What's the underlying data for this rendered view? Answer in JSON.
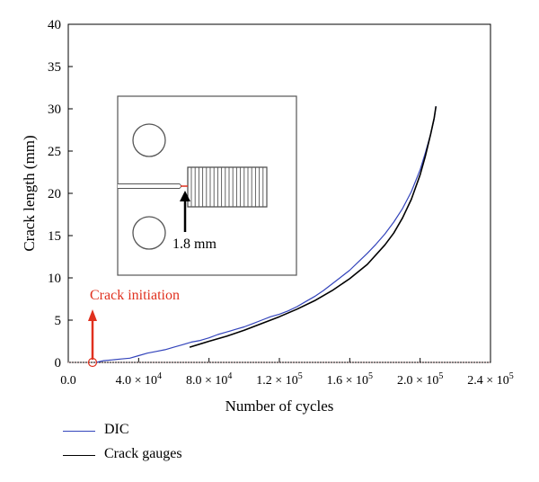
{
  "chart_data": {
    "type": "line",
    "xlabel": "Number of cycles",
    "ylabel": "Crack length (mm)",
    "xlim": [
      0,
      240000
    ],
    "ylim": [
      0,
      40
    ],
    "x_ticks": [
      {
        "value": 0,
        "label": "0.0"
      },
      {
        "value": 40000,
        "label": "4.0 × 10",
        "exp": "4"
      },
      {
        "value": 80000,
        "label": "8.0 × 10",
        "exp": "4"
      },
      {
        "value": 120000,
        "label": "1.2 × 10",
        "exp": "5"
      },
      {
        "value": 160000,
        "label": "1.6 × 10",
        "exp": "5"
      },
      {
        "value": 200000,
        "label": "2.0 × 10",
        "exp": "5"
      },
      {
        "value": 240000,
        "label": "2.4 × 10",
        "exp": "5"
      }
    ],
    "y_ticks": [
      {
        "value": 0,
        "label": "0"
      },
      {
        "value": 5,
        "label": "5"
      },
      {
        "value": 10,
        "label": "10"
      },
      {
        "value": 15,
        "label": "15"
      },
      {
        "value": 20,
        "label": "20"
      },
      {
        "value": 25,
        "label": "25"
      },
      {
        "value": 30,
        "label": "30"
      },
      {
        "value": 35,
        "label": "35"
      },
      {
        "value": 40,
        "label": "40"
      }
    ],
    "series": [
      {
        "name": "DIC",
        "color": "#3344bb",
        "x": [
          16000,
          20000,
          25000,
          30000,
          35000,
          40000,
          45000,
          50000,
          55000,
          60000,
          65000,
          70000,
          75000,
          80000,
          85000,
          90000,
          95000,
          100000,
          105000,
          110000,
          115000,
          120000,
          125000,
          130000,
          135000,
          140000,
          145000,
          150000,
          155000,
          160000,
          165000,
          170000,
          175000,
          180000,
          185000,
          190000,
          195000,
          200000,
          203000,
          206000,
          208000,
          209000
        ],
        "y": [
          0.0,
          0.2,
          0.3,
          0.4,
          0.5,
          0.8,
          1.1,
          1.3,
          1.5,
          1.8,
          2.1,
          2.4,
          2.6,
          2.9,
          3.3,
          3.6,
          3.9,
          4.2,
          4.6,
          5.0,
          5.4,
          5.7,
          6.1,
          6.6,
          7.2,
          7.8,
          8.5,
          9.3,
          10.1,
          10.9,
          11.9,
          12.9,
          14.0,
          15.2,
          16.6,
          18.2,
          20.2,
          22.8,
          24.8,
          27.0,
          28.8,
          30.3
        ]
      },
      {
        "name": "Crack gauges",
        "color": "#000000",
        "x": [
          69000,
          80000,
          90000,
          100000,
          110000,
          120000,
          130000,
          140000,
          150000,
          160000,
          170000,
          180000,
          185000,
          190000,
          195000,
          200000,
          203000,
          206000,
          208000,
          209000
        ],
        "y": [
          1.8,
          2.5,
          3.1,
          3.8,
          4.6,
          5.4,
          6.3,
          7.3,
          8.5,
          9.9,
          11.6,
          13.9,
          15.3,
          17.1,
          19.3,
          22.2,
          24.4,
          27.0,
          28.9,
          30.3
        ]
      }
    ],
    "annotations": [
      {
        "text": "Crack initiation",
        "color": "#e0301e",
        "x": 16000,
        "y": 0
      },
      {
        "text": "1.8 mm",
        "color": "#000000"
      }
    ]
  }
}
